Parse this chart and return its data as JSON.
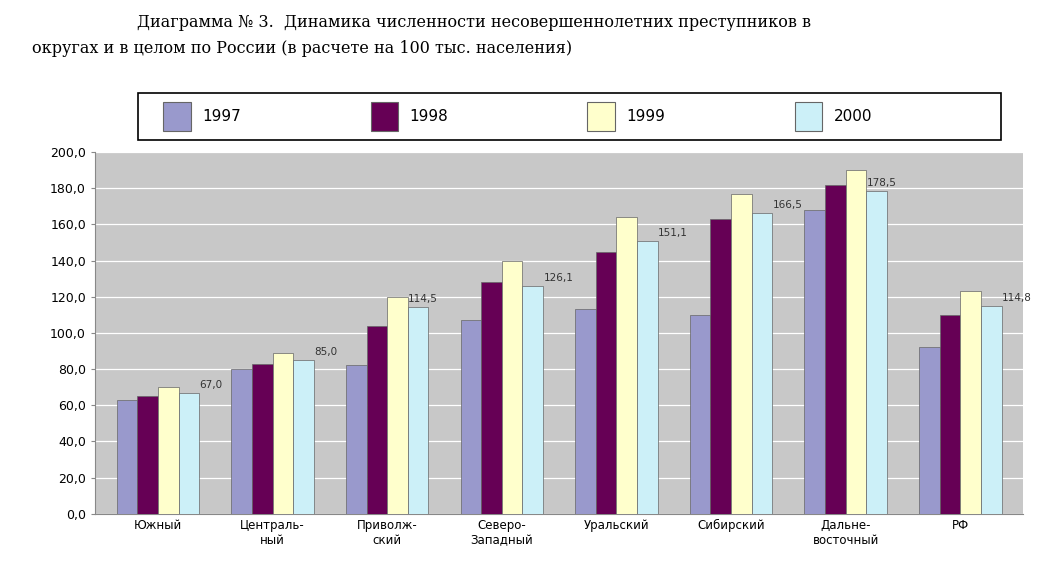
{
  "title_line1": "Диаграмма № 3.  Динамика численности несовершеннолетних преступников в",
  "title_line2": "округах и в целом по России (в расчете на 100 тыс. населения)",
  "categories": [
    "Южный",
    "Централь-\nный",
    "Приволж-\nский",
    "Северо-\nЗападный",
    "Уральский",
    "Сибирский",
    "Дальне-\nвосточный",
    "РФ"
  ],
  "years": [
    "1997",
    "1998",
    "1999",
    "2000"
  ],
  "data": {
    "1997": [
      63,
      80,
      82,
      107,
      113,
      110,
      168,
      92
    ],
    "1998": [
      65,
      83,
      104,
      128,
      145,
      163,
      182,
      110
    ],
    "1999": [
      70,
      89,
      120,
      140,
      164,
      177,
      190,
      123
    ],
    "2000": [
      67,
      85,
      114.5,
      126.1,
      151.1,
      166.5,
      178.5,
      114.8
    ]
  },
  "bar_colors": [
    "#9999cc",
    "#660055",
    "#ffffcc",
    "#ccf0f8"
  ],
  "bar_edge_color": "#666666",
  "ylim": [
    0,
    200
  ],
  "yticks": [
    0,
    20,
    40,
    60,
    80,
    100,
    120,
    140,
    160,
    180,
    200
  ],
  "ytick_labels": [
    "0,0",
    "20,0",
    "40,0",
    "60,0",
    "80,0",
    "100,0",
    "120,0",
    "140,0",
    "160,0",
    "180,0",
    "200,0"
  ],
  "plot_bg_color": "#c8c8c8",
  "font_size_title": 11.5,
  "font_size_ticks": 9,
  "font_size_labels": 8.5,
  "font_size_annotation": 7.5,
  "annotation_map": [
    [
      0,
      3,
      "67,0"
    ],
    [
      1,
      3,
      "85,0"
    ],
    [
      2,
      2,
      "114,5"
    ],
    [
      3,
      3,
      "126,1"
    ],
    [
      4,
      3,
      "151,1"
    ],
    [
      5,
      3,
      "166,5"
    ],
    [
      6,
      2,
      "178,5"
    ],
    [
      7,
      3,
      "114,8"
    ]
  ],
  "annotation_vals": [
    67.0,
    85.0,
    114.5,
    126.1,
    151.1,
    166.5,
    178.5,
    114.8
  ]
}
